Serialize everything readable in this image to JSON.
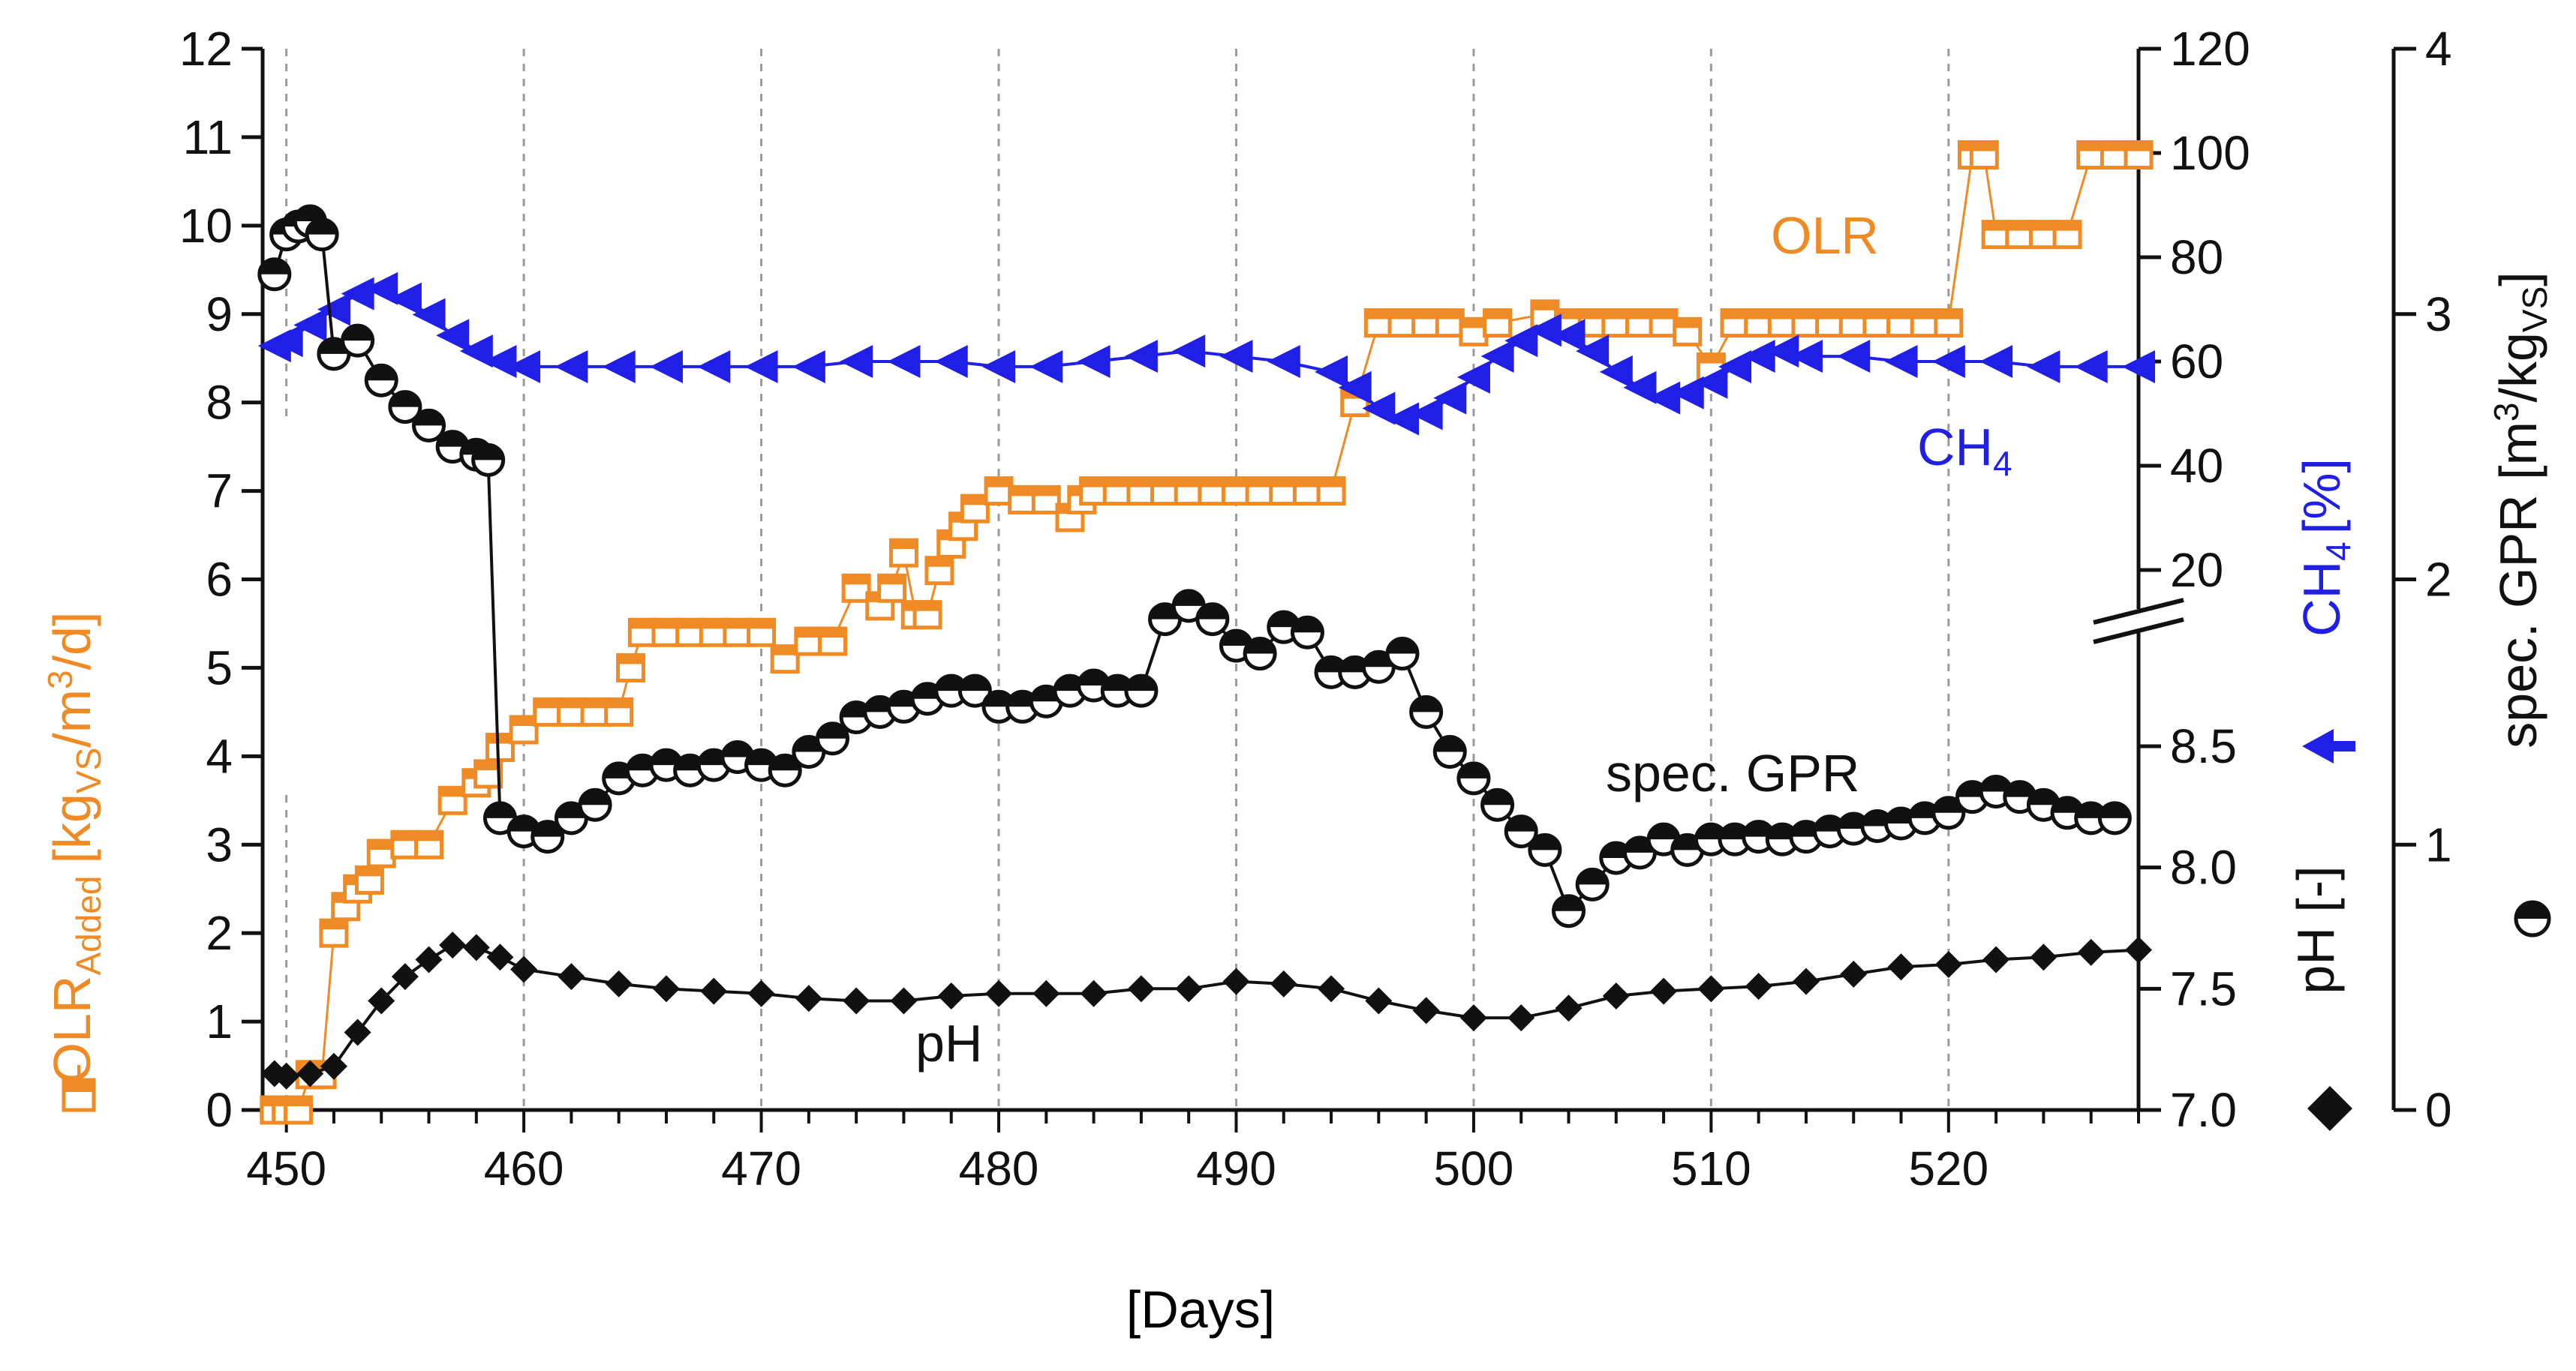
{
  "colors": {
    "olr": "#f08a24",
    "ch4": "#1f1fe8",
    "gpr": "#111111",
    "ph": "#111111",
    "axis": "#111111",
    "grid": "#9a9a9a"
  },
  "chart_data": {
    "type": "line",
    "xlabel": "[Days]",
    "xlim": [
      449,
      528
    ],
    "x_ticks": [
      450,
      460,
      470,
      480,
      490,
      500,
      510,
      520
    ],
    "grid": "vertical dashed at x ticks",
    "axes": {
      "olr": {
        "label_main": "OLR",
        "label_sub": "Added",
        "label_unit_open": "[kg",
        "label_unit_sub": "VS",
        "label_unit_close": "/m",
        "label_unit_sup": "3",
        "label_unit_end": "/d]",
        "ylim": [
          0,
          12
        ],
        "ticks": [
          "0",
          "1",
          "2",
          "3",
          "4",
          "5",
          "6",
          "7",
          "8",
          "9",
          "10",
          "11",
          "12"
        ]
      },
      "ch4": {
        "label_main": "CH",
        "label_sub": "4",
        "label_unit": "[%]",
        "ylim": [
          20,
          120
        ],
        "ticks": [
          "20",
          "40",
          "60",
          "80",
          "100",
          "120"
        ],
        "break": true
      },
      "ph": {
        "label": "pH [-]",
        "ylim": [
          7.0,
          8.5
        ],
        "ticks": [
          "7.0",
          "7.5",
          "8.0",
          "8.5"
        ]
      },
      "gpr": {
        "label_main": "spec. GPR [m",
        "label_sup": "3",
        "label_mid": "/kg",
        "label_sub": "VS",
        "label_end": "]",
        "ylim": [
          0,
          4
        ],
        "ticks": [
          "0",
          "1",
          "2",
          "3",
          "4"
        ]
      }
    },
    "annotations": {
      "olr": "OLR",
      "ch4_main": "CH",
      "ch4_sub": "4",
      "gpr": "spec. GPR",
      "ph": "pH"
    },
    "series": [
      {
        "name": "OLR",
        "axis": "olr",
        "marker": "square",
        "points": [
          [
            449.5,
            0
          ],
          [
            450,
            0
          ],
          [
            450.5,
            0
          ],
          [
            451,
            0.4
          ],
          [
            451.5,
            0.4
          ],
          [
            452,
            2
          ],
          [
            452.5,
            2.3
          ],
          [
            453,
            2.5
          ],
          [
            453.5,
            2.6
          ],
          [
            454,
            2.9
          ],
          [
            455,
            3
          ],
          [
            456,
            3
          ],
          [
            457,
            3.5
          ],
          [
            458,
            3.7
          ],
          [
            458.5,
            3.8
          ],
          [
            459,
            4.1
          ],
          [
            460,
            4.3
          ],
          [
            461,
            4.5
          ],
          [
            462,
            4.5
          ],
          [
            463,
            4.5
          ],
          [
            464,
            4.5
          ],
          [
            464.5,
            5
          ],
          [
            465,
            5.4
          ],
          [
            466,
            5.4
          ],
          [
            467,
            5.4
          ],
          [
            468,
            5.4
          ],
          [
            469,
            5.4
          ],
          [
            470,
            5.4
          ],
          [
            471,
            5.1
          ],
          [
            472,
            5.3
          ],
          [
            473,
            5.3
          ],
          [
            474,
            5.9
          ],
          [
            475,
            5.7
          ],
          [
            475.5,
            5.9
          ],
          [
            476,
            6.3
          ],
          [
            476.5,
            5.6
          ],
          [
            477,
            5.6
          ],
          [
            477.5,
            6.1
          ],
          [
            478,
            6.4
          ],
          [
            478.5,
            6.6
          ],
          [
            479,
            6.8
          ],
          [
            480,
            7
          ],
          [
            481,
            6.9
          ],
          [
            482,
            6.9
          ],
          [
            483,
            6.7
          ],
          [
            483.5,
            6.9
          ],
          [
            484,
            7
          ],
          [
            485,
            7
          ],
          [
            486,
            7
          ],
          [
            487,
            7
          ],
          [
            488,
            7
          ],
          [
            489,
            7
          ],
          [
            490,
            7
          ],
          [
            491,
            7
          ],
          [
            492,
            7
          ],
          [
            493,
            7
          ],
          [
            494,
            7
          ],
          [
            495,
            8
          ],
          [
            496,
            8.9
          ],
          [
            497,
            8.9
          ],
          [
            498,
            8.9
          ],
          [
            499,
            8.9
          ],
          [
            500,
            8.8
          ],
          [
            501,
            8.9
          ],
          [
            503,
            9
          ],
          [
            504,
            8.9
          ],
          [
            505,
            8.9
          ],
          [
            506,
            8.9
          ],
          [
            507,
            8.9
          ],
          [
            508,
            8.9
          ],
          [
            509,
            8.8
          ],
          [
            510,
            8.4
          ],
          [
            511,
            8.9
          ],
          [
            512,
            8.9
          ],
          [
            513,
            8.9
          ],
          [
            514,
            8.9
          ],
          [
            515,
            8.9
          ],
          [
            516,
            8.9
          ],
          [
            517,
            8.9
          ],
          [
            518,
            8.9
          ],
          [
            519,
            8.9
          ],
          [
            520,
            8.9
          ],
          [
            521,
            10.8
          ],
          [
            521.5,
            10.8
          ],
          [
            522,
            9.9
          ],
          [
            523,
            9.9
          ],
          [
            524,
            9.9
          ],
          [
            525,
            9.9
          ],
          [
            526,
            10.8
          ],
          [
            527,
            10.8
          ],
          [
            528,
            10.8
          ]
        ]
      },
      {
        "name": "CH4",
        "axis": "ch4",
        "marker": "triangle-left",
        "points": [
          [
            449.5,
            63
          ],
          [
            450,
            64
          ],
          [
            451,
            67
          ],
          [
            452,
            70
          ],
          [
            453,
            73
          ],
          [
            454,
            74
          ],
          [
            455,
            72
          ],
          [
            456,
            69
          ],
          [
            457,
            65
          ],
          [
            458,
            62
          ],
          [
            459,
            60
          ],
          [
            460,
            59
          ],
          [
            462,
            59
          ],
          [
            464,
            59
          ],
          [
            466,
            59
          ],
          [
            468,
            59
          ],
          [
            470,
            59
          ],
          [
            472,
            59
          ],
          [
            474,
            60
          ],
          [
            476,
            60
          ],
          [
            478,
            60
          ],
          [
            480,
            59
          ],
          [
            482,
            59
          ],
          [
            484,
            60
          ],
          [
            486,
            61
          ],
          [
            488,
            62
          ],
          [
            490,
            61
          ],
          [
            492,
            60
          ],
          [
            494,
            58
          ],
          [
            495,
            55
          ],
          [
            496,
            51
          ],
          [
            497,
            49
          ],
          [
            498,
            50
          ],
          [
            499,
            53
          ],
          [
            500,
            57
          ],
          [
            501,
            61
          ],
          [
            502,
            64
          ],
          [
            503,
            66
          ],
          [
            504,
            65
          ],
          [
            505,
            62
          ],
          [
            506,
            58
          ],
          [
            507,
            55
          ],
          [
            508,
            53
          ],
          [
            509,
            54
          ],
          [
            510,
            56
          ],
          [
            511,
            59
          ],
          [
            512,
            61
          ],
          [
            513,
            62
          ],
          [
            514,
            61
          ],
          [
            516,
            61
          ],
          [
            518,
            60
          ],
          [
            520,
            60
          ],
          [
            522,
            60
          ],
          [
            524,
            59
          ],
          [
            526,
            59
          ],
          [
            528,
            59
          ]
        ]
      },
      {
        "name": "spec. GPR",
        "axis": "gpr",
        "marker": "circle-half",
        "points": [
          [
            449.5,
            3.15
          ],
          [
            450,
            3.3
          ],
          [
            450.5,
            3.33
          ],
          [
            451,
            3.35
          ],
          [
            451.5,
            3.3
          ],
          [
            452,
            2.85
          ],
          [
            453,
            2.9
          ],
          [
            454,
            2.75
          ],
          [
            455,
            2.65
          ],
          [
            456,
            2.58
          ],
          [
            457,
            2.5
          ],
          [
            458,
            2.47
          ],
          [
            458.5,
            2.45
          ],
          [
            459,
            1.1
          ],
          [
            460,
            1.05
          ],
          [
            461,
            1.03
          ],
          [
            462,
            1.1
          ],
          [
            463,
            1.15
          ],
          [
            464,
            1.25
          ],
          [
            465,
            1.28
          ],
          [
            466,
            1.3
          ],
          [
            467,
            1.28
          ],
          [
            468,
            1.3
          ],
          [
            469,
            1.33
          ],
          [
            470,
            1.3
          ],
          [
            471,
            1.28
          ],
          [
            472,
            1.35
          ],
          [
            473,
            1.4
          ],
          [
            474,
            1.48
          ],
          [
            475,
            1.5
          ],
          [
            476,
            1.52
          ],
          [
            477,
            1.55
          ],
          [
            478,
            1.58
          ],
          [
            479,
            1.58
          ],
          [
            480,
            1.52
          ],
          [
            481,
            1.52
          ],
          [
            482,
            1.54
          ],
          [
            483,
            1.58
          ],
          [
            484,
            1.6
          ],
          [
            485,
            1.58
          ],
          [
            486,
            1.58
          ],
          [
            487,
            1.85
          ],
          [
            488,
            1.9
          ],
          [
            489,
            1.85
          ],
          [
            490,
            1.75
          ],
          [
            491,
            1.72
          ],
          [
            492,
            1.82
          ],
          [
            493,
            1.8
          ],
          [
            494,
            1.65
          ],
          [
            495,
            1.65
          ],
          [
            496,
            1.67
          ],
          [
            497,
            1.72
          ],
          [
            498,
            1.5
          ],
          [
            499,
            1.35
          ],
          [
            500,
            1.25
          ],
          [
            501,
            1.15
          ],
          [
            502,
            1.05
          ],
          [
            503,
            0.98
          ],
          [
            504,
            0.75
          ],
          [
            505,
            0.85
          ],
          [
            506,
            0.95
          ],
          [
            507,
            0.97
          ],
          [
            508,
            1.02
          ],
          [
            509,
            0.98
          ],
          [
            510,
            1.02
          ],
          [
            511,
            1.02
          ],
          [
            512,
            1.03
          ],
          [
            513,
            1.02
          ],
          [
            514,
            1.03
          ],
          [
            515,
            1.05
          ],
          [
            516,
            1.06
          ],
          [
            517,
            1.07
          ],
          [
            518,
            1.08
          ],
          [
            519,
            1.1
          ],
          [
            520,
            1.12
          ],
          [
            521,
            1.18
          ],
          [
            522,
            1.2
          ],
          [
            523,
            1.18
          ],
          [
            524,
            1.15
          ],
          [
            525,
            1.12
          ],
          [
            526,
            1.1
          ],
          [
            527,
            1.1
          ]
        ]
      },
      {
        "name": "pH",
        "axis": "ph",
        "marker": "diamond",
        "points": [
          [
            449.5,
            7.15
          ],
          [
            450,
            7.14
          ],
          [
            451,
            7.15
          ],
          [
            452,
            7.18
          ],
          [
            453,
            7.32
          ],
          [
            454,
            7.45
          ],
          [
            455,
            7.55
          ],
          [
            456,
            7.62
          ],
          [
            457,
            7.68
          ],
          [
            458,
            7.67
          ],
          [
            459,
            7.63
          ],
          [
            460,
            7.58
          ],
          [
            462,
            7.55
          ],
          [
            464,
            7.52
          ],
          [
            466,
            7.5
          ],
          [
            468,
            7.49
          ],
          [
            470,
            7.48
          ],
          [
            472,
            7.46
          ],
          [
            474,
            7.45
          ],
          [
            476,
            7.45
          ],
          [
            478,
            7.47
          ],
          [
            480,
            7.48
          ],
          [
            482,
            7.48
          ],
          [
            484,
            7.48
          ],
          [
            486,
            7.5
          ],
          [
            488,
            7.5
          ],
          [
            490,
            7.53
          ],
          [
            492,
            7.52
          ],
          [
            494,
            7.5
          ],
          [
            496,
            7.45
          ],
          [
            498,
            7.41
          ],
          [
            500,
            7.38
          ],
          [
            502,
            7.38
          ],
          [
            504,
            7.42
          ],
          [
            506,
            7.47
          ],
          [
            508,
            7.49
          ],
          [
            510,
            7.5
          ],
          [
            512,
            7.51
          ],
          [
            514,
            7.53
          ],
          [
            516,
            7.56
          ],
          [
            518,
            7.59
          ],
          [
            520,
            7.6
          ],
          [
            522,
            7.62
          ],
          [
            524,
            7.63
          ],
          [
            526,
            7.65
          ],
          [
            528,
            7.66
          ]
        ]
      }
    ]
  }
}
